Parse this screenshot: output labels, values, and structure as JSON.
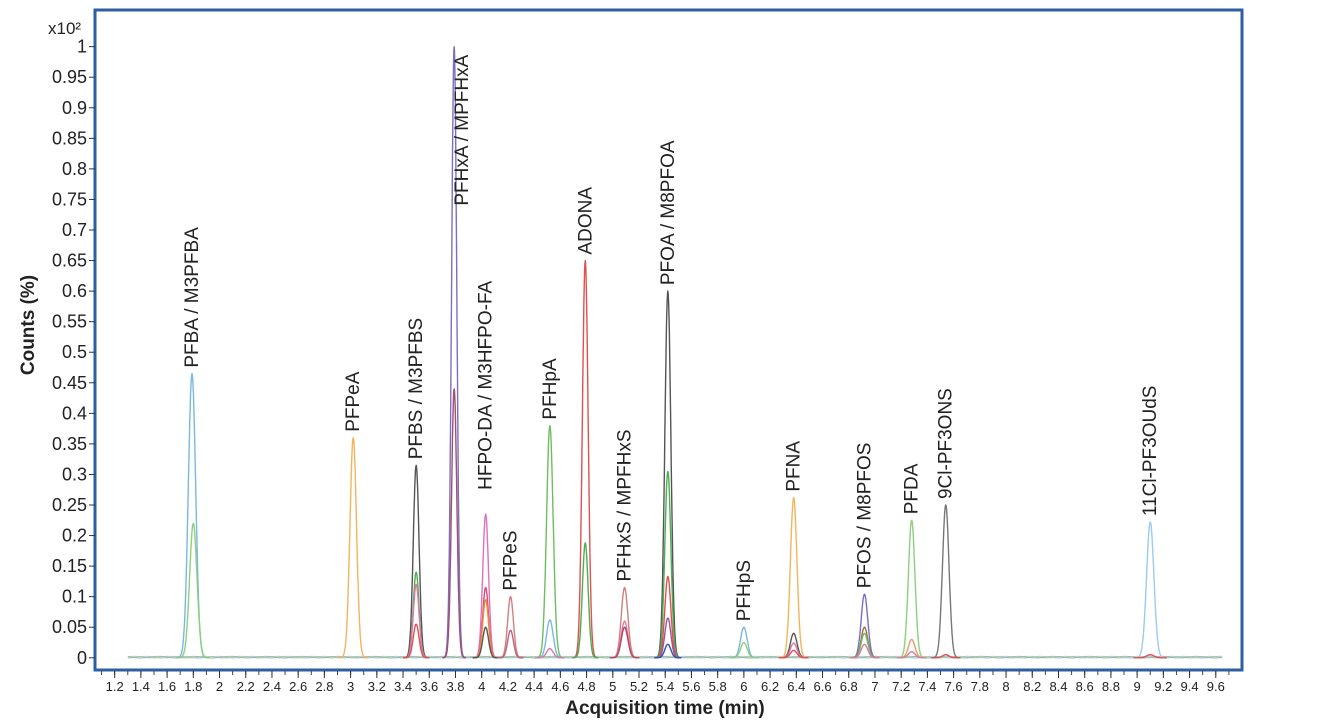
{
  "chart_data": {
    "type": "line",
    "y_multiplier": "x10²",
    "xlabel": "Acquisition time (min)",
    "ylabel": "Counts (%)",
    "xlim": [
      1.05,
      9.8
    ],
    "ylim": [
      -0.02,
      1.06
    ],
    "x_ticks": [
      "1.2",
      "1.4",
      "1.6",
      "1.8",
      "2",
      "2.2",
      "2.4",
      "2.6",
      "2.8",
      "3",
      "3.2",
      "3.4",
      "3.6",
      "3.8",
      "4",
      "4.2",
      "4.4",
      "4.6",
      "4.8",
      "5",
      "5.2",
      "5.4",
      "5.6",
      "5.8",
      "6",
      "6.2",
      "6.4",
      "6.6",
      "6.8",
      "7",
      "7.2",
      "7.4",
      "7.6",
      "7.8",
      "8",
      "8.2",
      "8.4",
      "8.6",
      "8.8",
      "9",
      "9.2",
      "9.4",
      "9.6"
    ],
    "y_ticks": [
      "0",
      "0.05",
      "0.1",
      "0.15",
      "0.2",
      "0.25",
      "0.3",
      "0.35",
      "0.4",
      "0.45",
      "0.5",
      "0.55",
      "0.6",
      "0.65",
      "0.7",
      "0.75",
      "0.8",
      "0.85",
      "0.9",
      "0.95",
      "1"
    ],
    "grid": false,
    "frame_color": "#2e5fa3",
    "peaks": [
      {
        "x": 1.79,
        "y": 0.465,
        "w": 0.028,
        "color": "#7ab8e0"
      },
      {
        "x": 1.8,
        "y": 0.22,
        "w": 0.028,
        "color": "#8dcf7e"
      },
      {
        "x": 3.02,
        "y": 0.36,
        "w": 0.025,
        "color": "#f5b45a"
      },
      {
        "x": 3.5,
        "y": 0.315,
        "w": 0.022,
        "color": "#555555"
      },
      {
        "x": 3.5,
        "y": 0.14,
        "w": 0.022,
        "color": "#4caf50"
      },
      {
        "x": 3.5,
        "y": 0.12,
        "w": 0.022,
        "color": "#d97aa8"
      },
      {
        "x": 3.5,
        "y": 0.055,
        "w": 0.022,
        "color": "#e05050"
      },
      {
        "x": 3.79,
        "y": 1.0,
        "w": 0.02,
        "color": "#7b6fc4"
      },
      {
        "x": 3.79,
        "y": 0.44,
        "w": 0.02,
        "color": "#a05070"
      },
      {
        "x": 4.03,
        "y": 0.235,
        "w": 0.022,
        "color": "#e070c0"
      },
      {
        "x": 4.03,
        "y": 0.115,
        "w": 0.022,
        "color": "#d05070"
      },
      {
        "x": 4.03,
        "y": 0.095,
        "w": 0.022,
        "color": "#f08a3a"
      },
      {
        "x": 4.03,
        "y": 0.05,
        "w": 0.022,
        "color": "#555555"
      },
      {
        "x": 4.22,
        "y": 0.1,
        "w": 0.022,
        "color": "#d08080"
      },
      {
        "x": 4.22,
        "y": 0.045,
        "w": 0.022,
        "color": "#c06080"
      },
      {
        "x": 4.52,
        "y": 0.38,
        "w": 0.025,
        "color": "#6cbf5f"
      },
      {
        "x": 4.52,
        "y": 0.062,
        "w": 0.025,
        "color": "#7ab8e0"
      },
      {
        "x": 4.52,
        "y": 0.015,
        "w": 0.025,
        "color": "#d97aa8"
      },
      {
        "x": 4.79,
        "y": 0.65,
        "w": 0.022,
        "color": "#e05050"
      },
      {
        "x": 4.79,
        "y": 0.188,
        "w": 0.022,
        "color": "#4caf50"
      },
      {
        "x": 5.09,
        "y": 0.115,
        "w": 0.025,
        "color": "#d08080"
      },
      {
        "x": 5.09,
        "y": 0.06,
        "w": 0.025,
        "color": "#d97aa8"
      },
      {
        "x": 5.09,
        "y": 0.05,
        "w": 0.025,
        "color": "#c04060"
      },
      {
        "x": 5.42,
        "y": 0.6,
        "w": 0.023,
        "color": "#555555"
      },
      {
        "x": 5.42,
        "y": 0.305,
        "w": 0.023,
        "color": "#4caf50"
      },
      {
        "x": 5.42,
        "y": 0.133,
        "w": 0.023,
        "color": "#e05050"
      },
      {
        "x": 5.42,
        "y": 0.065,
        "w": 0.023,
        "color": "#a050a0"
      },
      {
        "x": 5.42,
        "y": 0.022,
        "w": 0.023,
        "color": "#3050b0"
      },
      {
        "x": 6.0,
        "y": 0.05,
        "w": 0.025,
        "color": "#7ab8e0"
      },
      {
        "x": 6.0,
        "y": 0.025,
        "w": 0.025,
        "color": "#8dcf7e"
      },
      {
        "x": 6.38,
        "y": 0.262,
        "w": 0.025,
        "color": "#f5b45a"
      },
      {
        "x": 6.38,
        "y": 0.04,
        "w": 0.025,
        "color": "#555555"
      },
      {
        "x": 6.38,
        "y": 0.024,
        "w": 0.025,
        "color": "#d97aa8"
      },
      {
        "x": 6.38,
        "y": 0.012,
        "w": 0.025,
        "color": "#e05050"
      },
      {
        "x": 6.92,
        "y": 0.104,
        "w": 0.025,
        "color": "#7b6fc4"
      },
      {
        "x": 6.92,
        "y": 0.05,
        "w": 0.025,
        "color": "#a07040"
      },
      {
        "x": 6.92,
        "y": 0.04,
        "w": 0.025,
        "color": "#6cbf5f"
      },
      {
        "x": 6.92,
        "y": 0.022,
        "w": 0.025,
        "color": "#d97aa8"
      },
      {
        "x": 7.28,
        "y": 0.225,
        "w": 0.025,
        "color": "#8dcf7e"
      },
      {
        "x": 7.28,
        "y": 0.03,
        "w": 0.025,
        "color": "#e0a060"
      },
      {
        "x": 7.28,
        "y": 0.01,
        "w": 0.025,
        "color": "#d97aa8"
      },
      {
        "x": 7.54,
        "y": 0.25,
        "w": 0.025,
        "color": "#777777"
      },
      {
        "x": 7.54,
        "y": 0.005,
        "w": 0.025,
        "color": "#e05050"
      },
      {
        "x": 9.1,
        "y": 0.222,
        "w": 0.028,
        "color": "#9ccaf0"
      },
      {
        "x": 9.1,
        "y": 0.005,
        "w": 0.028,
        "color": "#e05050"
      }
    ],
    "annotations": [
      {
        "text": "PFBA / M3PFBA",
        "x": 1.79,
        "y": 0.465
      },
      {
        "text": "PFPeA",
        "x": 3.02,
        "y": 0.36
      },
      {
        "text": "PFBS / M3PFBS",
        "x": 3.5,
        "y": 0.315
      },
      {
        "text": "PFHxA / MPFHxA",
        "x": 3.85,
        "y": 0.73
      },
      {
        "text": "HFPO-DA / M3HFPO-FA",
        "x": 4.03,
        "y": 0.265
      },
      {
        "text": "PFPeS",
        "x": 4.22,
        "y": 0.1
      },
      {
        "text": "PFHpA",
        "x": 4.52,
        "y": 0.38
      },
      {
        "text": "ADONA",
        "x": 4.79,
        "y": 0.65
      },
      {
        "text": "PFHxS / MPFHxS",
        "x": 5.09,
        "y": 0.115
      },
      {
        "text": "PFOA / M8PFOA",
        "x": 5.42,
        "y": 0.6
      },
      {
        "text": "PFHpS",
        "x": 6.0,
        "y": 0.05
      },
      {
        "text": "PFNA",
        "x": 6.38,
        "y": 0.262
      },
      {
        "text": "PFOS / M8PFOS",
        "x": 6.92,
        "y": 0.104
      },
      {
        "text": "PFDA",
        "x": 7.28,
        "y": 0.225
      },
      {
        "text": "9Cl-PF3ONS",
        "x": 7.54,
        "y": 0.25
      },
      {
        "text": "11Cl-PF3OUdS",
        "x": 9.1,
        "y": 0.222
      }
    ]
  }
}
